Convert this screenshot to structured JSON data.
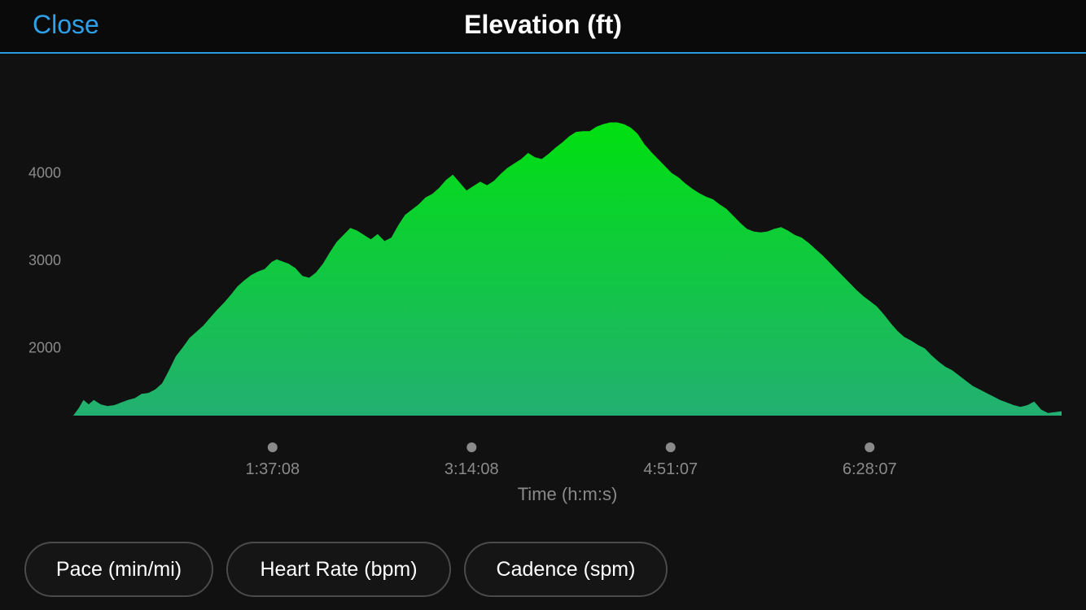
{
  "header": {
    "close_label": "Close",
    "title": "Elevation (ft)"
  },
  "buttons": [
    {
      "label": "Pace (min/mi)"
    },
    {
      "label": "Heart Rate (bpm)"
    },
    {
      "label": "Cadence (spm)"
    }
  ],
  "colors": {
    "accent": "#2ea0e8",
    "area_top": "#00e010",
    "area_bottom": "#22b072",
    "background": "#111111"
  },
  "chart_data": {
    "type": "area",
    "title": "Elevation (ft)",
    "xlabel": "Time (h:m:s)",
    "ylabel": "",
    "y_ticks": [
      2000,
      3000,
      4000
    ],
    "x_ticks": [
      {
        "seconds": 5828,
        "label": "1:37:08"
      },
      {
        "seconds": 11648,
        "label": "3:14:08"
      },
      {
        "seconds": 17467,
        "label": "4:51:07"
      },
      {
        "seconds": 23287,
        "label": "6:28:07"
      }
    ],
    "xlim": [
      0,
      28900
    ],
    "ylim": [
      1220,
      4780
    ],
    "grid": false,
    "legend": "none",
    "x": [
      0,
      150,
      300,
      450,
      600,
      800,
      1000,
      1200,
      1400,
      1600,
      1800,
      2000,
      2200,
      2400,
      2600,
      2800,
      3000,
      3200,
      3400,
      3600,
      3800,
      4000,
      4200,
      4400,
      4600,
      4800,
      5000,
      5200,
      5400,
      5600,
      5800,
      5950,
      6100,
      6300,
      6500,
      6700,
      6900,
      7100,
      7300,
      7500,
      7700,
      7900,
      8100,
      8300,
      8500,
      8700,
      8900,
      9100,
      9300,
      9500,
      9700,
      9900,
      10100,
      10300,
      10500,
      10700,
      10900,
      11100,
      11300,
      11500,
      11700,
      11900,
      12100,
      12300,
      12500,
      12700,
      12900,
      13100,
      13300,
      13500,
      13700,
      13900,
      14100,
      14300,
      14500,
      14700,
      14900,
      15100,
      15300,
      15500,
      15700,
      15900,
      16100,
      16300,
      16500,
      16700,
      16900,
      17100,
      17300,
      17500,
      17700,
      17900,
      18100,
      18300,
      18500,
      18700,
      18900,
      19100,
      19300,
      19500,
      19700,
      19900,
      20100,
      20300,
      20500,
      20700,
      20900,
      21100,
      21300,
      21500,
      21700,
      21900,
      22100,
      22300,
      22500,
      22700,
      22900,
      23100,
      23300,
      23500,
      23700,
      23900,
      24100,
      24300,
      24500,
      24700,
      24900,
      25100,
      25300,
      25500,
      25700,
      25900,
      26100,
      26300,
      26500,
      26700,
      26900,
      27100,
      27300,
      27500,
      27700,
      27900,
      28100,
      28300,
      28500,
      28700,
      28900
    ],
    "y": [
      1220,
      1300,
      1400,
      1350,
      1400,
      1350,
      1330,
      1340,
      1370,
      1400,
      1420,
      1470,
      1480,
      1520,
      1590,
      1740,
      1900,
      2000,
      2110,
      2180,
      2250,
      2340,
      2430,
      2510,
      2600,
      2700,
      2770,
      2830,
      2870,
      2900,
      2980,
      3010,
      2990,
      2960,
      2910,
      2820,
      2800,
      2860,
      2960,
      3090,
      3210,
      3290,
      3370,
      3340,
      3290,
      3240,
      3300,
      3220,
      3260,
      3400,
      3520,
      3580,
      3640,
      3720,
      3760,
      3830,
      3920,
      3980,
      3890,
      3800,
      3850,
      3900,
      3860,
      3910,
      3990,
      4060,
      4110,
      4160,
      4230,
      4180,
      4160,
      4220,
      4290,
      4350,
      4420,
      4470,
      4480,
      4480,
      4530,
      4560,
      4580,
      4580,
      4560,
      4520,
      4450,
      4330,
      4240,
      4160,
      4080,
      4000,
      3950,
      3880,
      3820,
      3770,
      3730,
      3700,
      3640,
      3590,
      3510,
      3430,
      3360,
      3330,
      3320,
      3330,
      3360,
      3380,
      3340,
      3290,
      3260,
      3200,
      3130,
      3060,
      2980,
      2900,
      2820,
      2740,
      2660,
      2590,
      2530,
      2470,
      2380,
      2280,
      2190,
      2120,
      2080,
      2030,
      1990,
      1910,
      1840,
      1780,
      1740,
      1680,
      1620,
      1560,
      1520,
      1480,
      1440,
      1400,
      1370,
      1340,
      1320,
      1340,
      1380,
      1290,
      1250,
      1260,
      1270
    ]
  }
}
